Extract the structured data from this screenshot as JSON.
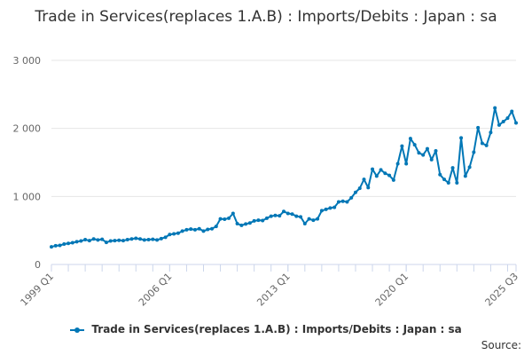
{
  "title": "Trade in Services(replaces 1.A.B) : Imports/Debits : Japan : sa",
  "source_label": "Source:",
  "legend": {
    "label": "Trade in Services(replaces 1.A.B) : Imports/Debits : Japan : sa"
  },
  "colors": {
    "series": "#0077b6",
    "grid": "#e6e6e6",
    "axis": "#ccd6eb",
    "text": "#666666"
  },
  "chart_data": {
    "type": "line",
    "ylim": [
      0,
      3000
    ],
    "yticks": [
      0,
      1000,
      2000,
      3000
    ],
    "ytick_labels": [
      "0",
      "1 000",
      "2 000",
      "3 000"
    ],
    "xtick_labels": [
      "1999 Q1",
      "2006 Q1",
      "2013 Q1",
      "2020 Q1",
      "2025 Q3"
    ],
    "grid": true,
    "legend_position": "bottom",
    "series": [
      {
        "name": "Trade in Services(replaces 1.A.B) : Imports/Debits : Japan : sa",
        "start": "1999 Q1",
        "end": "2025 Q3",
        "values": [
          260,
          275,
          280,
          300,
          310,
          320,
          335,
          345,
          365,
          350,
          375,
          360,
          370,
          325,
          345,
          350,
          355,
          350,
          365,
          375,
          385,
          375,
          360,
          365,
          370,
          360,
          380,
          400,
          440,
          450,
          460,
          490,
          510,
          520,
          510,
          525,
          490,
          515,
          525,
          560,
          670,
          665,
          680,
          750,
          600,
          575,
          595,
          610,
          640,
          650,
          645,
          680,
          710,
          720,
          715,
          780,
          750,
          740,
          710,
          700,
          600,
          670,
          650,
          670,
          790,
          810,
          830,
          840,
          920,
          930,
          920,
          980,
          1060,
          1120,
          1250,
          1130,
          1400,
          1300,
          1390,
          1340,
          1310,
          1240,
          1480,
          1740,
          1480,
          1850,
          1760,
          1640,
          1610,
          1700,
          1540,
          1670,
          1320,
          1250,
          1200,
          1420,
          1200,
          1860,
          1300,
          1430,
          1650,
          2010,
          1780,
          1750,
          1940,
          2300,
          2050,
          2100,
          2150,
          2250,
          2080
        ]
      }
    ]
  }
}
